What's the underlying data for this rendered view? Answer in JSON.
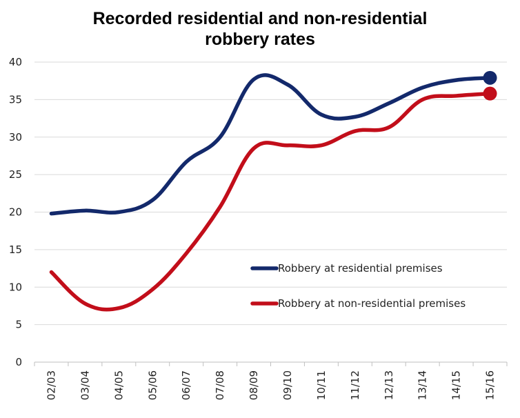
{
  "chart_data": {
    "type": "line",
    "title_lines": [
      "Recorded residential and non-residential",
      "robbery rates"
    ],
    "xlabel": "",
    "ylabel": "",
    "categories": [
      "02/03",
      "03/04",
      "04/05",
      "05/06",
      "06/07",
      "07/08",
      "08/09",
      "09/10",
      "10/11",
      "11/12",
      "12/13",
      "13/14",
      "14/15",
      "15/16"
    ],
    "ylim": [
      0,
      40
    ],
    "yticks": [
      0,
      5,
      10,
      15,
      20,
      25,
      30,
      35,
      40
    ],
    "grid": "horizontal",
    "legend_position": "right-middle",
    "series": [
      {
        "name": "Robbery at residential premises",
        "color": "#13296b",
        "values": [
          19.8,
          20.2,
          20.0,
          21.6,
          26.7,
          30.0,
          37.7,
          37.0,
          33.0,
          32.7,
          34.5,
          36.6,
          37.6,
          37.9
        ]
      },
      {
        "name": "Robbery at non-residential premises",
        "color": "#c20e1a",
        "values": [
          12.0,
          7.8,
          7.2,
          9.7,
          14.5,
          20.7,
          28.5,
          28.9,
          28.9,
          30.8,
          31.3,
          35.0,
          35.5,
          35.8
        ]
      }
    ]
  }
}
